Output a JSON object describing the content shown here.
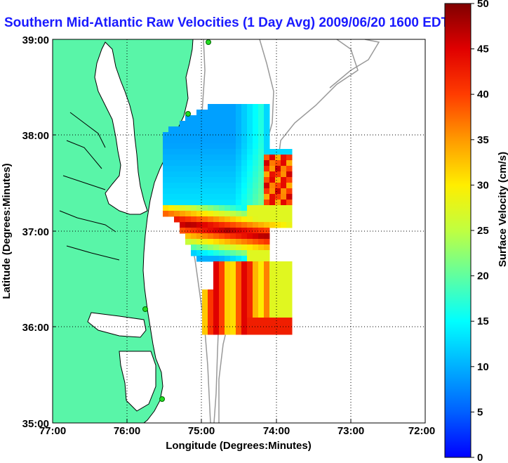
{
  "title": "Southern Mid-Atlantic Raw Velocities (1 Day Avg) 2009/06/20 1600 EDT",
  "x_axis": {
    "label": "Longitude (Degrees:Minutes)",
    "ticks": [
      "77:00",
      "76:00",
      "75:00",
      "74:00",
      "73:00",
      "72:00"
    ]
  },
  "y_axis": {
    "label": "Latitude (Degrees:Minutes)",
    "ticks": [
      "39:00",
      "38:00",
      "37:00",
      "36:00",
      "35:00"
    ]
  },
  "colorbar": {
    "label": "Surface Velocity (cm/s)",
    "ticks": [
      "50",
      "45",
      "40",
      "35",
      "30",
      "25",
      "20",
      "15",
      "10",
      "5",
      "0"
    ],
    "min": 0,
    "max": 50
  },
  "colors": {
    "land": "#59f5a8",
    "water": "#ffffff",
    "title": "#1a1aff",
    "station": "#22dd22",
    "bathymetry": "#999999"
  },
  "legend_units": "cm/s"
}
